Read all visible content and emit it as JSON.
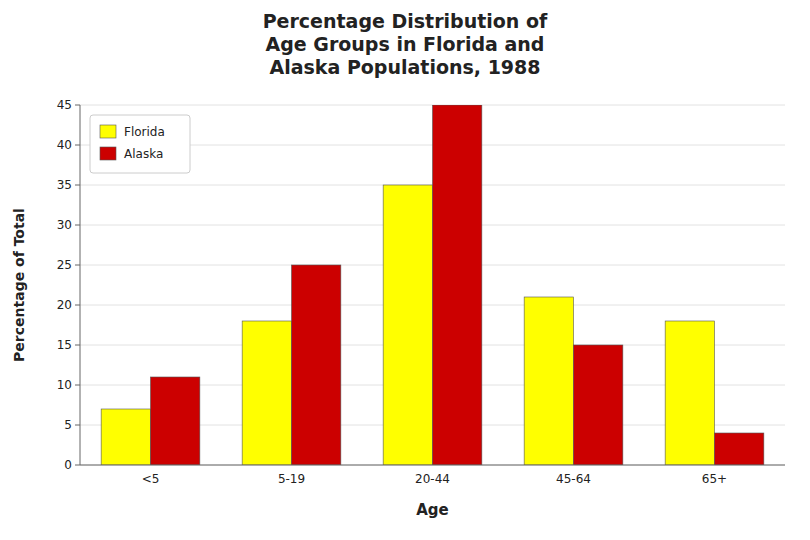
{
  "chart_data": {
    "type": "bar",
    "title": "Percentage Distribution of\nAge Groups in Florida and\nAlaska Populations, 1988",
    "x_label": "Age",
    "y_label": "Percentage of Total",
    "categories": [
      "<5",
      "5-19",
      "20-44",
      "45-64",
      "65+"
    ],
    "series": [
      {
        "name": "Florida",
        "color": "#FFFF00",
        "values": [
          7,
          18,
          35,
          21,
          18
        ]
      },
      {
        "name": "Alaska",
        "color": "#CC0000",
        "values": [
          11,
          25,
          45,
          15,
          4
        ]
      }
    ],
    "ylim": [
      0,
      45
    ],
    "yticks": [
      0,
      5,
      10,
      15,
      20,
      25,
      30,
      35,
      40,
      45
    ],
    "grid": true,
    "legend": "upper left"
  }
}
